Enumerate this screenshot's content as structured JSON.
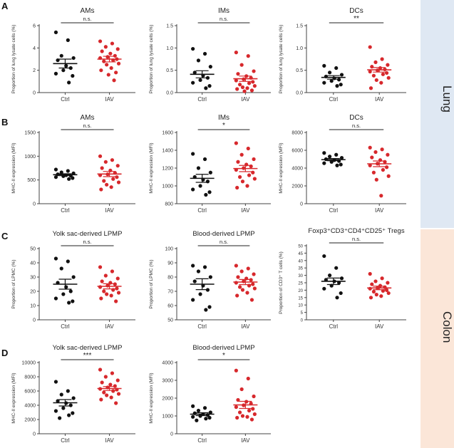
{
  "colors": {
    "ctrl": "#111111",
    "iav": "#d7282c",
    "axis": "#444444",
    "lung_band": "#dfe8f3",
    "colon_band": "#fbe6d8"
  },
  "labels": {
    "lung": "Lung",
    "colon": "Colon"
  },
  "chart_data": [
    {
      "panel": "A",
      "type": "scatter",
      "title": "AMs",
      "ylabel": "Proportion of lung lysate cells (%)",
      "ylim": [
        0,
        6
      ],
      "yticks": [
        0,
        2,
        4,
        6
      ],
      "categories": [
        "Ctrl",
        "IAV"
      ],
      "significance": "n.s.",
      "series": [
        {
          "name": "Ctrl",
          "mean": 2.6,
          "sem": 0.4,
          "values": [
            5.4,
            4.7,
            3.3,
            3.1,
            2.9,
            2.4,
            2.2,
            2.0,
            1.7,
            1.5,
            0.9
          ]
        },
        {
          "name": "IAV",
          "mean": 3.0,
          "sem": 0.25,
          "values": [
            4.6,
            4.4,
            4.1,
            3.9,
            3.7,
            3.5,
            3.3,
            3.2,
            3.1,
            3.0,
            2.9,
            2.8,
            2.6,
            2.5,
            2.2,
            2.0,
            1.8,
            1.6,
            1.1
          ]
        }
      ]
    },
    {
      "panel": "A",
      "type": "scatter",
      "title": "IMs",
      "ylabel": "Proportion of lung lysate cells (%)",
      "ylim": [
        0,
        1.5
      ],
      "yticks": [
        0,
        0.5,
        1.0,
        1.5
      ],
      "categories": [
        "Ctrl",
        "IAV"
      ],
      "significance": "n.s.",
      "series": [
        {
          "name": "Ctrl",
          "mean": 0.41,
          "sem": 0.08,
          "values": [
            0.98,
            0.87,
            0.72,
            0.58,
            0.45,
            0.38,
            0.33,
            0.28,
            0.22,
            0.15,
            0.1
          ]
        },
        {
          "name": "IAV",
          "mean": 0.31,
          "sem": 0.06,
          "values": [
            0.9,
            0.82,
            0.62,
            0.48,
            0.42,
            0.37,
            0.33,
            0.3,
            0.27,
            0.24,
            0.21,
            0.18,
            0.15,
            0.12,
            0.1,
            0.08,
            0.05,
            0.03
          ]
        }
      ]
    },
    {
      "panel": "A",
      "type": "scatter",
      "title": "DCs",
      "ylabel": "Proportion of lung lysate cells (%)",
      "ylim": [
        0,
        1.5
      ],
      "yticks": [
        0,
        0.5,
        1.0,
        1.5
      ],
      "categories": [
        "Ctrl",
        "IAV"
      ],
      "significance": "**",
      "series": [
        {
          "name": "Ctrl",
          "mean": 0.34,
          "sem": 0.04,
          "values": [
            0.6,
            0.55,
            0.45,
            0.4,
            0.36,
            0.32,
            0.29,
            0.26,
            0.22,
            0.18,
            0.15
          ]
        },
        {
          "name": "IAV",
          "mean": 0.51,
          "sem": 0.05,
          "values": [
            1.02,
            0.75,
            0.68,
            0.62,
            0.58,
            0.55,
            0.52,
            0.5,
            0.47,
            0.44,
            0.41,
            0.38,
            0.33,
            0.28,
            0.22,
            0.1
          ]
        }
      ]
    },
    {
      "panel": "B",
      "type": "scatter",
      "title": "AMs",
      "ylabel": "MHC-II expression (MFI)",
      "ylim": [
        0,
        1500
      ],
      "yticks": [
        0,
        500,
        1000,
        1500
      ],
      "categories": [
        "Ctrl",
        "IAV"
      ],
      "significance": "n.s.",
      "series": [
        {
          "name": "Ctrl",
          "mean": 610,
          "sem": 20,
          "values": [
            720,
            690,
            660,
            640,
            620,
            600,
            590,
            580,
            560,
            540,
            520
          ]
        },
        {
          "name": "IAV",
          "mean": 625,
          "sem": 55,
          "values": [
            1000,
            920,
            880,
            800,
            750,
            700,
            650,
            620,
            600,
            560,
            520,
            480,
            450,
            400,
            350,
            300
          ]
        }
      ]
    },
    {
      "panel": "B",
      "type": "scatter",
      "title": "IMs",
      "ylabel": "MHC-II expression (MFI)",
      "ylim": [
        800,
        1600
      ],
      "yticks": [
        800,
        1000,
        1200,
        1400,
        1600
      ],
      "categories": [
        "Ctrl",
        "IAV"
      ],
      "significance": "*",
      "series": [
        {
          "name": "Ctrl",
          "mean": 1085,
          "sem": 45,
          "values": [
            1360,
            1300,
            1200,
            1150,
            1100,
            1070,
            1050,
            1000,
            960,
            930,
            900
          ]
        },
        {
          "name": "IAV",
          "mean": 1195,
          "sem": 35,
          "values": [
            1480,
            1420,
            1350,
            1300,
            1270,
            1240,
            1220,
            1200,
            1180,
            1150,
            1120,
            1100,
            1080,
            1050,
            1000,
            980
          ]
        }
      ]
    },
    {
      "panel": "B",
      "type": "scatter",
      "title": "DCs",
      "ylabel": "MHC-II expression (MFI)",
      "ylim": [
        0,
        8000
      ],
      "yticks": [
        0,
        2000,
        4000,
        6000,
        8000
      ],
      "categories": [
        "Ctrl",
        "IAV"
      ],
      "significance": "n.s.",
      "series": [
        {
          "name": "Ctrl",
          "mean": 4950,
          "sem": 120,
          "values": [
            5700,
            5500,
            5300,
            5150,
            5000,
            4900,
            4800,
            4700,
            4550,
            4400,
            4300
          ]
        },
        {
          "name": "IAV",
          "mean": 4480,
          "sem": 320,
          "values": [
            6300,
            6100,
            5800,
            5500,
            5200,
            4900,
            4700,
            4500,
            4300,
            4100,
            3800,
            3500,
            3100,
            2700,
            900
          ]
        }
      ]
    },
    {
      "panel": "C",
      "type": "scatter",
      "title": "Yolk sac-derived LPMP",
      "ylabel": "Proportion of LPMC (%)",
      "ylim": [
        0,
        50
      ],
      "yticks": [
        0,
        10,
        20,
        30,
        40,
        50
      ],
      "categories": [
        "Ctrl",
        "IAV"
      ],
      "significance": "n.s.",
      "series": [
        {
          "name": "Ctrl",
          "mean": 25,
          "sem": 3.5,
          "values": [
            43,
            41,
            36,
            30,
            26,
            23,
            20,
            18,
            15,
            13,
            12
          ]
        },
        {
          "name": "IAV",
          "mean": 23.5,
          "sem": 1.8,
          "values": [
            37,
            34,
            31,
            29,
            27,
            26,
            25,
            24,
            23,
            22,
            21,
            20,
            19,
            18,
            17,
            15,
            13
          ]
        }
      ]
    },
    {
      "panel": "C",
      "type": "scatter",
      "title": "Blood-derived LPMP",
      "ylabel": "Proportion of LPMC (%)",
      "ylim": [
        50,
        100
      ],
      "yticks": [
        50,
        60,
        70,
        80,
        90,
        100
      ],
      "categories": [
        "Ctrl",
        "IAV"
      ],
      "significance": "n.s.",
      "series": [
        {
          "name": "Ctrl",
          "mean": 75,
          "sem": 3.8,
          "values": [
            88,
            87,
            84,
            80,
            77,
            74,
            71,
            68,
            64,
            59,
            57
          ]
        },
        {
          "name": "IAV",
          "mean": 76.5,
          "sem": 1.8,
          "values": [
            88,
            86,
            84,
            82,
            80,
            79,
            78,
            77,
            76,
            75,
            74,
            73,
            72,
            71,
            69,
            67,
            64
          ]
        }
      ]
    },
    {
      "panel": "C",
      "type": "scatter",
      "title": "Foxp3⁺CD3⁺CD4⁺CD25⁺ Tregs",
      "ylabel": "Proportion of CD3⁺ T cells (%)",
      "ylim": [
        0,
        50
      ],
      "yticks": [
        0,
        5,
        10,
        15,
        20,
        25,
        30,
        35,
        40,
        45,
        50
      ],
      "categories": [
        "Ctrl",
        "IAV"
      ],
      "significance": "n.s.",
      "series": [
        {
          "name": "Ctrl",
          "mean": 26,
          "sem": 2.2,
          "values": [
            43,
            35,
            30,
            28,
            27,
            26,
            25,
            23,
            21,
            18,
            15
          ]
        },
        {
          "name": "IAV",
          "mean": 21.5,
          "sem": 1.2,
          "values": [
            31,
            28,
            26,
            25,
            24,
            23,
            22,
            21.5,
            21,
            20,
            19.5,
            19,
            18,
            17,
            16,
            15
          ]
        }
      ]
    },
    {
      "panel": "D",
      "type": "scatter",
      "title": "Yolk sac-derived LPMP",
      "ylabel": "MHC-II expression (MFI)",
      "ylim": [
        0,
        10000
      ],
      "yticks": [
        0,
        2000,
        4000,
        6000,
        8000,
        10000
      ],
      "categories": [
        "Ctrl",
        "IAV"
      ],
      "significance": "***",
      "series": [
        {
          "name": "Ctrl",
          "mean": 4350,
          "sem": 450,
          "values": [
            7300,
            6000,
            5500,
            5000,
            4600,
            4300,
            4000,
            3600,
            3200,
            2900,
            2600,
            2200
          ]
        },
        {
          "name": "IAV",
          "mean": 6350,
          "sem": 280,
          "values": [
            9000,
            8500,
            8000,
            7500,
            7200,
            6900,
            6700,
            6500,
            6300,
            6200,
            6000,
            5800,
            5600,
            5400,
            5100,
            4800,
            4300
          ]
        }
      ]
    },
    {
      "panel": "D",
      "type": "scatter",
      "title": "Blood-derived LPMP",
      "ylabel": "MHC-II expression (MFI)",
      "ylim": [
        0,
        4000
      ],
      "yticks": [
        0,
        1000,
        2000,
        3000,
        4000
      ],
      "categories": [
        "Ctrl",
        "IAV"
      ],
      "significance": "*",
      "series": [
        {
          "name": "Ctrl",
          "mean": 1100,
          "sem": 80,
          "values": [
            1550,
            1450,
            1300,
            1200,
            1150,
            1100,
            1050,
            1000,
            950,
            900,
            850,
            750
          ]
        },
        {
          "name": "IAV",
          "mean": 1620,
          "sem": 200,
          "values": [
            3550,
            3100,
            2500,
            2100,
            1900,
            1800,
            1700,
            1600,
            1500,
            1400,
            1300,
            1200,
            1100,
            1000,
            950,
            900,
            800
          ]
        }
      ]
    }
  ]
}
